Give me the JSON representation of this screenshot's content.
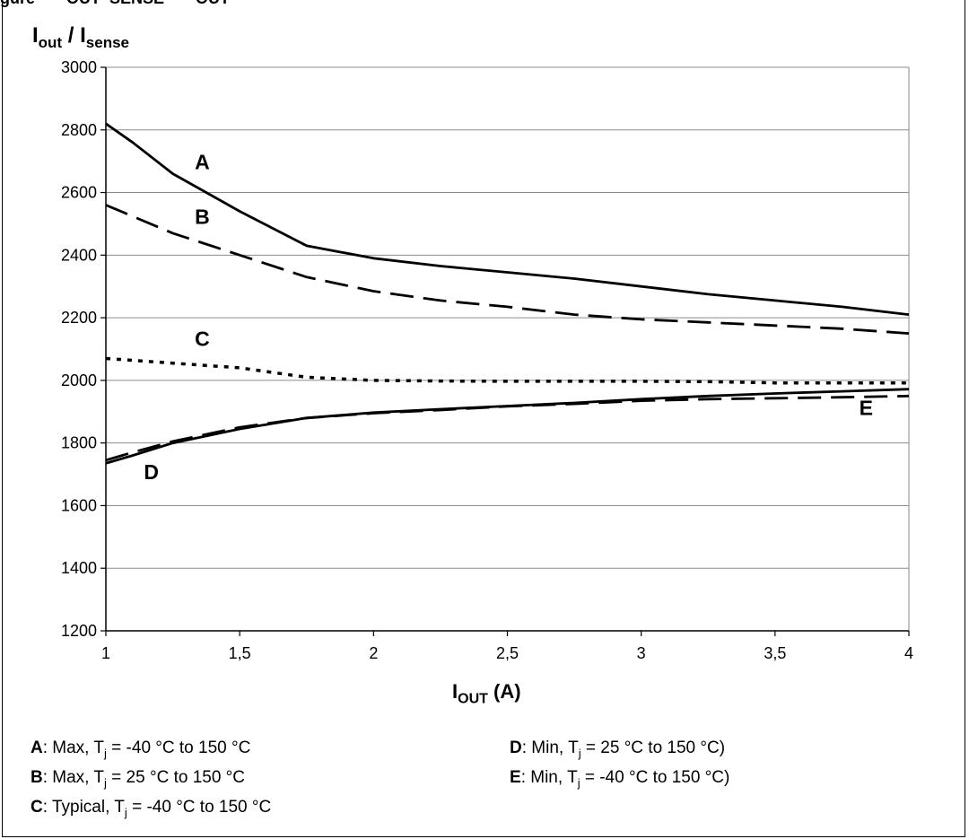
{
  "header_fragment": "gure       OUT  SENSE       OUT",
  "chart_data": {
    "type": "line",
    "ylabel": {
      "main": "I",
      "sub_out": "out",
      "slash": " / I",
      "sub_sense": "sense"
    },
    "xlabel": {
      "main": "I",
      "sub": "OUT",
      "unit": " (A)"
    },
    "xlim": [
      1,
      4
    ],
    "ylim": [
      1200,
      3000
    ],
    "xticks": [
      1,
      1.5,
      2,
      2.5,
      3,
      3.5,
      4
    ],
    "xtick_labels": [
      "1",
      "1,5",
      "2",
      "2,5",
      "3",
      "3,5",
      "4"
    ],
    "yticks": [
      1200,
      1400,
      1600,
      1800,
      2000,
      2200,
      2400,
      2600,
      2800,
      3000
    ],
    "ytick_labels": [
      "1200",
      "1400",
      "1600",
      "1800",
      "2000",
      "2200",
      "2400",
      "2600",
      "2800",
      "3000"
    ],
    "grid": "horizontal",
    "series": [
      {
        "name": "A",
        "style": "solid",
        "x": [
          1,
          1.1,
          1.25,
          1.5,
          1.75,
          2,
          2.25,
          2.5,
          2.75,
          3,
          3.25,
          3.5,
          3.75,
          4
        ],
        "y": [
          2820,
          2760,
          2660,
          2540,
          2430,
          2390,
          2365,
          2345,
          2325,
          2300,
          2275,
          2255,
          2235,
          2210
        ]
      },
      {
        "name": "B",
        "style": "dashed",
        "x": [
          1,
          1.25,
          1.5,
          1.75,
          2,
          2.25,
          2.5,
          2.75,
          3,
          3.25,
          3.5,
          3.75,
          4
        ],
        "y": [
          2560,
          2470,
          2400,
          2330,
          2285,
          2255,
          2235,
          2210,
          2195,
          2185,
          2175,
          2165,
          2150
        ]
      },
      {
        "name": "C",
        "style": "dotted",
        "x": [
          1,
          1.25,
          1.5,
          1.75,
          2,
          2.25,
          2.5,
          2.75,
          3,
          3.25,
          3.5,
          3.75,
          4
        ],
        "y": [
          2070,
          2055,
          2040,
          2010,
          2000,
          1998,
          1997,
          1997,
          1997,
          1996,
          1992,
          1992,
          1992
        ]
      },
      {
        "name": "D",
        "style": "solid",
        "x": [
          1,
          1.1,
          1.25,
          1.5,
          1.75,
          2,
          2.25,
          2.5,
          2.75,
          3,
          3.25,
          3.5,
          3.75,
          4
        ],
        "y": [
          1735,
          1760,
          1800,
          1845,
          1880,
          1897,
          1908,
          1918,
          1928,
          1940,
          1950,
          1958,
          1965,
          1972
        ]
      },
      {
        "name": "E",
        "style": "dashed",
        "x": [
          1,
          1.1,
          1.25,
          1.5,
          1.75,
          2,
          2.25,
          2.5,
          2.75,
          3,
          3.25,
          3.5,
          3.75,
          4
        ],
        "y": [
          1745,
          1770,
          1805,
          1850,
          1880,
          1895,
          1905,
          1917,
          1925,
          1935,
          1940,
          1943,
          1946,
          1950
        ]
      }
    ],
    "curve_labels": [
      {
        "text": "A",
        "x": 1.36,
        "y": 2675
      },
      {
        "text": "B",
        "x": 1.36,
        "y": 2500
      },
      {
        "text": "C",
        "x": 1.36,
        "y": 2110
      },
      {
        "text": "D",
        "x": 1.17,
        "y": 1685
      },
      {
        "text": "E",
        "x": 3.84,
        "y": 1890
      }
    ]
  },
  "legend": {
    "a": {
      "key": "A",
      "text1": ": Max, T",
      "sub": "j",
      "text2": " = -40 °C to 150 °C"
    },
    "b": {
      "key": "B",
      "text1": ": Max, T",
      "sub": "j",
      "text2": " = 25 °C to 150 °C"
    },
    "c": {
      "key": "C",
      "text1": ": Typical, T",
      "sub": "j",
      "text2": " = -40 °C to 150 °C"
    },
    "d": {
      "key": "D",
      "text1": ": Min, T",
      "sub": "j",
      "text2": " = 25 °C to 150 °C)"
    },
    "e": {
      "key": "E",
      "text1": ": Min, T",
      "sub": "j",
      "text2": " = -40 °C to 150 °C)"
    }
  }
}
